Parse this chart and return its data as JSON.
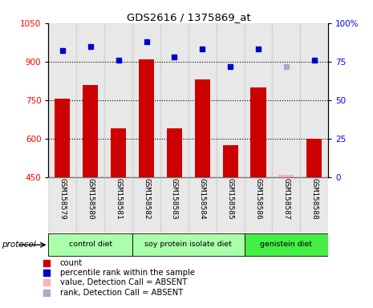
{
  "title": "GDS2616 / 1375869_at",
  "samples": [
    "GSM158579",
    "GSM158580",
    "GSM158581",
    "GSM158582",
    "GSM158583",
    "GSM158584",
    "GSM158585",
    "GSM158586",
    "GSM158587",
    "GSM158588"
  ],
  "count_values": [
    755,
    810,
    640,
    910,
    640,
    830,
    575,
    800,
    null,
    600
  ],
  "count_absent_values": [
    null,
    null,
    null,
    null,
    null,
    null,
    null,
    null,
    460,
    null
  ],
  "rank_values": [
    82,
    85,
    76,
    88,
    78,
    83,
    72,
    83,
    null,
    76
  ],
  "rank_absent_values": [
    null,
    null,
    null,
    null,
    null,
    null,
    null,
    null,
    72,
    null
  ],
  "ylim_left": [
    450,
    1050
  ],
  "ylim_right": [
    0,
    100
  ],
  "yticks_left": [
    450,
    600,
    750,
    900,
    1050
  ],
  "yticks_right": [
    0,
    25,
    50,
    75,
    100
  ],
  "ytick_labels_right": [
    "0",
    "25",
    "50",
    "75",
    "100%"
  ],
  "grid_values": [
    600,
    750,
    900
  ],
  "color_bar": "#cc0000",
  "color_bar_absent": "#ffb0b0",
  "color_rank": "#0000cc",
  "color_rank_absent": "#aaaacc",
  "protocol_groups": [
    {
      "label": "control diet",
      "start": 0,
      "end": 2,
      "color": "#aaffaa"
    },
    {
      "label": "soy protein isolate diet",
      "start": 3,
      "end": 6,
      "color": "#aaffaa"
    },
    {
      "label": "genistein diet",
      "start": 7,
      "end": 9,
      "color": "#44ee44"
    }
  ],
  "protocol_label": "protocol",
  "legend_labels": [
    "count",
    "percentile rank within the sample",
    "value, Detection Call = ABSENT",
    "rank, Detection Call = ABSENT"
  ],
  "legend_colors": [
    "#cc0000",
    "#0000cc",
    "#ffb0b0",
    "#aaaacc"
  ],
  "bar_width": 0.55,
  "col_bg_color": "#cccccc",
  "col_bg_alpha": 0.45
}
